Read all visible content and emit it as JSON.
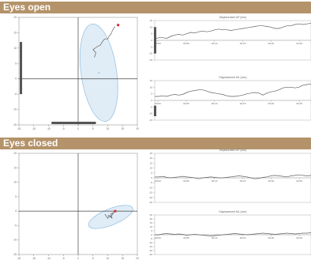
{
  "sections": {
    "open": {
      "title": "Eyes open"
    },
    "closed": {
      "title": "Eyes closed"
    }
  },
  "colors": {
    "band": "#b4936a",
    "ellipse_fill": "#dbeaf6",
    "ellipse_stroke": "#9cc4e4",
    "trace": "#606060",
    "marker": "#d93030",
    "bar": "#555555"
  },
  "chart_data": [
    {
      "id": "open-stabilogram",
      "type": "scatter",
      "title": "",
      "xlabel": "",
      "ylabel": "",
      "xlim": [
        -20,
        20
      ],
      "ylim": [
        -15,
        20
      ],
      "x_ticks": [
        -20,
        -15,
        -10,
        -5,
        0,
        5,
        10,
        15,
        20
      ],
      "y_ticks": [
        -15,
        -10,
        -5,
        0,
        5,
        10,
        15,
        20
      ],
      "grid": false,
      "crosshair": [
        0,
        0
      ],
      "ellipse": {
        "cx": 7,
        "cy": 2,
        "rx": 6,
        "ry": 16,
        "rotation_deg": -8
      },
      "series": [
        {
          "values": [
            [
              5.5,
              7
            ],
            [
              6,
              8.5
            ],
            [
              5,
              9.5
            ],
            [
              6.5,
              10.5
            ],
            [
              7.5,
              11
            ],
            [
              8.5,
              12.5
            ],
            [
              9,
              13
            ],
            [
              10,
              13
            ],
            [
              10.5,
              14
            ],
            [
              11,
              14.5
            ],
            [
              11.5,
              15.5
            ],
            [
              12,
              16.5
            ],
            [
              12.5,
              17
            ]
          ]
        }
      ],
      "marker": [
        13.5,
        17.5
      ],
      "center_point": [
        7,
        2
      ],
      "side_bar_y": [
        -5,
        12
      ],
      "bottom_bar_x": [
        -9,
        6
      ]
    },
    {
      "id": "open-displacement-ap",
      "type": "line",
      "title": "Displacement AP (mm)",
      "xlabel": "",
      "ylabel": "",
      "ylim": [
        -15,
        15
      ],
      "x_tick_labels": [
        "00:00",
        "00:05",
        "00:10",
        "00:15",
        "00:20",
        "00:25"
      ],
      "y_tick_labels": [
        "15",
        "10",
        "5",
        "0",
        "-5",
        "-10",
        "-15"
      ],
      "values": [
        1,
        2,
        2,
        1.5,
        3,
        4,
        4.5,
        4,
        5,
        6,
        5.5,
        6.5,
        7,
        6.5,
        7,
        8,
        8.5,
        8,
        8,
        7.5,
        8,
        8.5,
        9,
        9.5,
        10,
        10.5,
        11,
        11,
        10.5,
        10,
        9,
        9,
        10,
        11,
        11,
        12,
        12.5,
        12,
        12.5,
        13
      ],
      "side_bar_y": [
        -10,
        10
      ]
    },
    {
      "id": "open-displacement-ml",
      "type": "line",
      "title": "Displacement ML (mm)",
      "xlabel": "",
      "ylabel": "",
      "ylim": [
        -15,
        15
      ],
      "x_tick_labels": [
        "00:00",
        "00:05",
        "00:10",
        "00:15",
        "00:20",
        "00:25"
      ],
      "y_tick_labels": [
        "15",
        "10",
        "5",
        "0",
        "-5",
        "-10",
        "-15"
      ],
      "values": [
        3,
        3,
        3.5,
        3,
        4,
        4.5,
        4,
        4.5,
        6,
        7,
        7.5,
        8,
        8,
        7,
        6,
        5.5,
        5,
        4.5,
        3.5,
        3,
        3,
        3.5,
        4,
        5,
        5.5,
        6,
        5.5,
        4,
        5.5,
        6.5,
        7,
        8,
        9.5,
        10,
        10,
        9.5,
        10,
        11.5,
        12,
        12.5
      ],
      "side_bar_y": [
        -12,
        -4
      ]
    },
    {
      "id": "closed-stabilogram",
      "type": "scatter",
      "title": "",
      "xlabel": "",
      "ylabel": "",
      "xlim": [
        -20,
        20
      ],
      "ylim": [
        -15,
        20
      ],
      "x_ticks": [
        -20,
        -15,
        -10,
        -5,
        0,
        5,
        10,
        15,
        20
      ],
      "y_ticks": [
        -15,
        -10,
        -5,
        0,
        5,
        10,
        15,
        20
      ],
      "grid": false,
      "crosshair": [
        0,
        0
      ],
      "ellipse": {
        "cx": 11,
        "cy": -2,
        "rx": 8,
        "ry": 2.8,
        "rotation_deg": -22
      },
      "series": [
        {
          "values": [
            [
              9,
              -1
            ],
            [
              10,
              -2.5
            ],
            [
              10.5,
              -1.5
            ],
            [
              11.5,
              -2.5
            ],
            [
              11,
              -1
            ],
            [
              12,
              -0.5
            ],
            [
              11,
              -2
            ],
            [
              10,
              -1.5
            ]
          ]
        }
      ],
      "marker": [
        12.5,
        0
      ],
      "center_point": [
        10.5,
        -2
      ]
    },
    {
      "id": "closed-displacement-ap",
      "type": "line",
      "title": "Displacement AP (mm)",
      "xlabel": "",
      "ylabel": "",
      "ylim": [
        -25,
        25
      ],
      "x_tick_labels": [
        "00:00",
        "00:05",
        "00:10",
        "00:15",
        "00:20",
        "00:25"
      ],
      "y_tick_labels": [
        "25",
        "20",
        "15",
        "10",
        "5",
        "0",
        "-5",
        "-10",
        "-15",
        "-20",
        "-25"
      ],
      "values": [
        1,
        1,
        1.5,
        0.5,
        0,
        0.5,
        1,
        1.5,
        1,
        0.5,
        0,
        -1,
        0,
        0.5,
        1,
        0.5,
        0,
        0,
        0.5,
        1,
        1.5,
        2,
        1.5,
        1,
        0,
        -1,
        -0.5,
        0.5,
        1,
        2,
        2.5,
        2,
        1.5,
        1,
        2,
        2.5,
        3,
        2.5,
        2,
        2.5
      ]
    },
    {
      "id": "closed-displacement-ml",
      "type": "line",
      "title": "Displacement ML (mm)",
      "xlabel": "",
      "ylabel": "",
      "ylim": [
        -25,
        25
      ],
      "x_tick_labels": [
        "00:00",
        "00:05",
        "00:10",
        "00:15",
        "00:20",
        "00:25"
      ],
      "y_tick_labels": [
        "25",
        "20",
        "15",
        "10",
        "5",
        "0",
        "-5",
        "-10",
        "-15",
        "-20",
        "-25"
      ],
      "values": [
        0,
        0,
        1,
        1.5,
        1,
        0.5,
        1,
        0.5,
        -0.5,
        0,
        0.5,
        0,
        -0.5,
        -1,
        -1.5,
        -1,
        -0.5,
        0,
        0.5,
        1,
        1.5,
        1,
        0.5,
        0,
        0.5,
        1,
        1.5,
        2,
        1.5,
        1,
        0.5,
        1,
        1.5,
        2,
        1.5,
        1,
        1.5,
        2,
        2,
        2.5
      ]
    }
  ]
}
